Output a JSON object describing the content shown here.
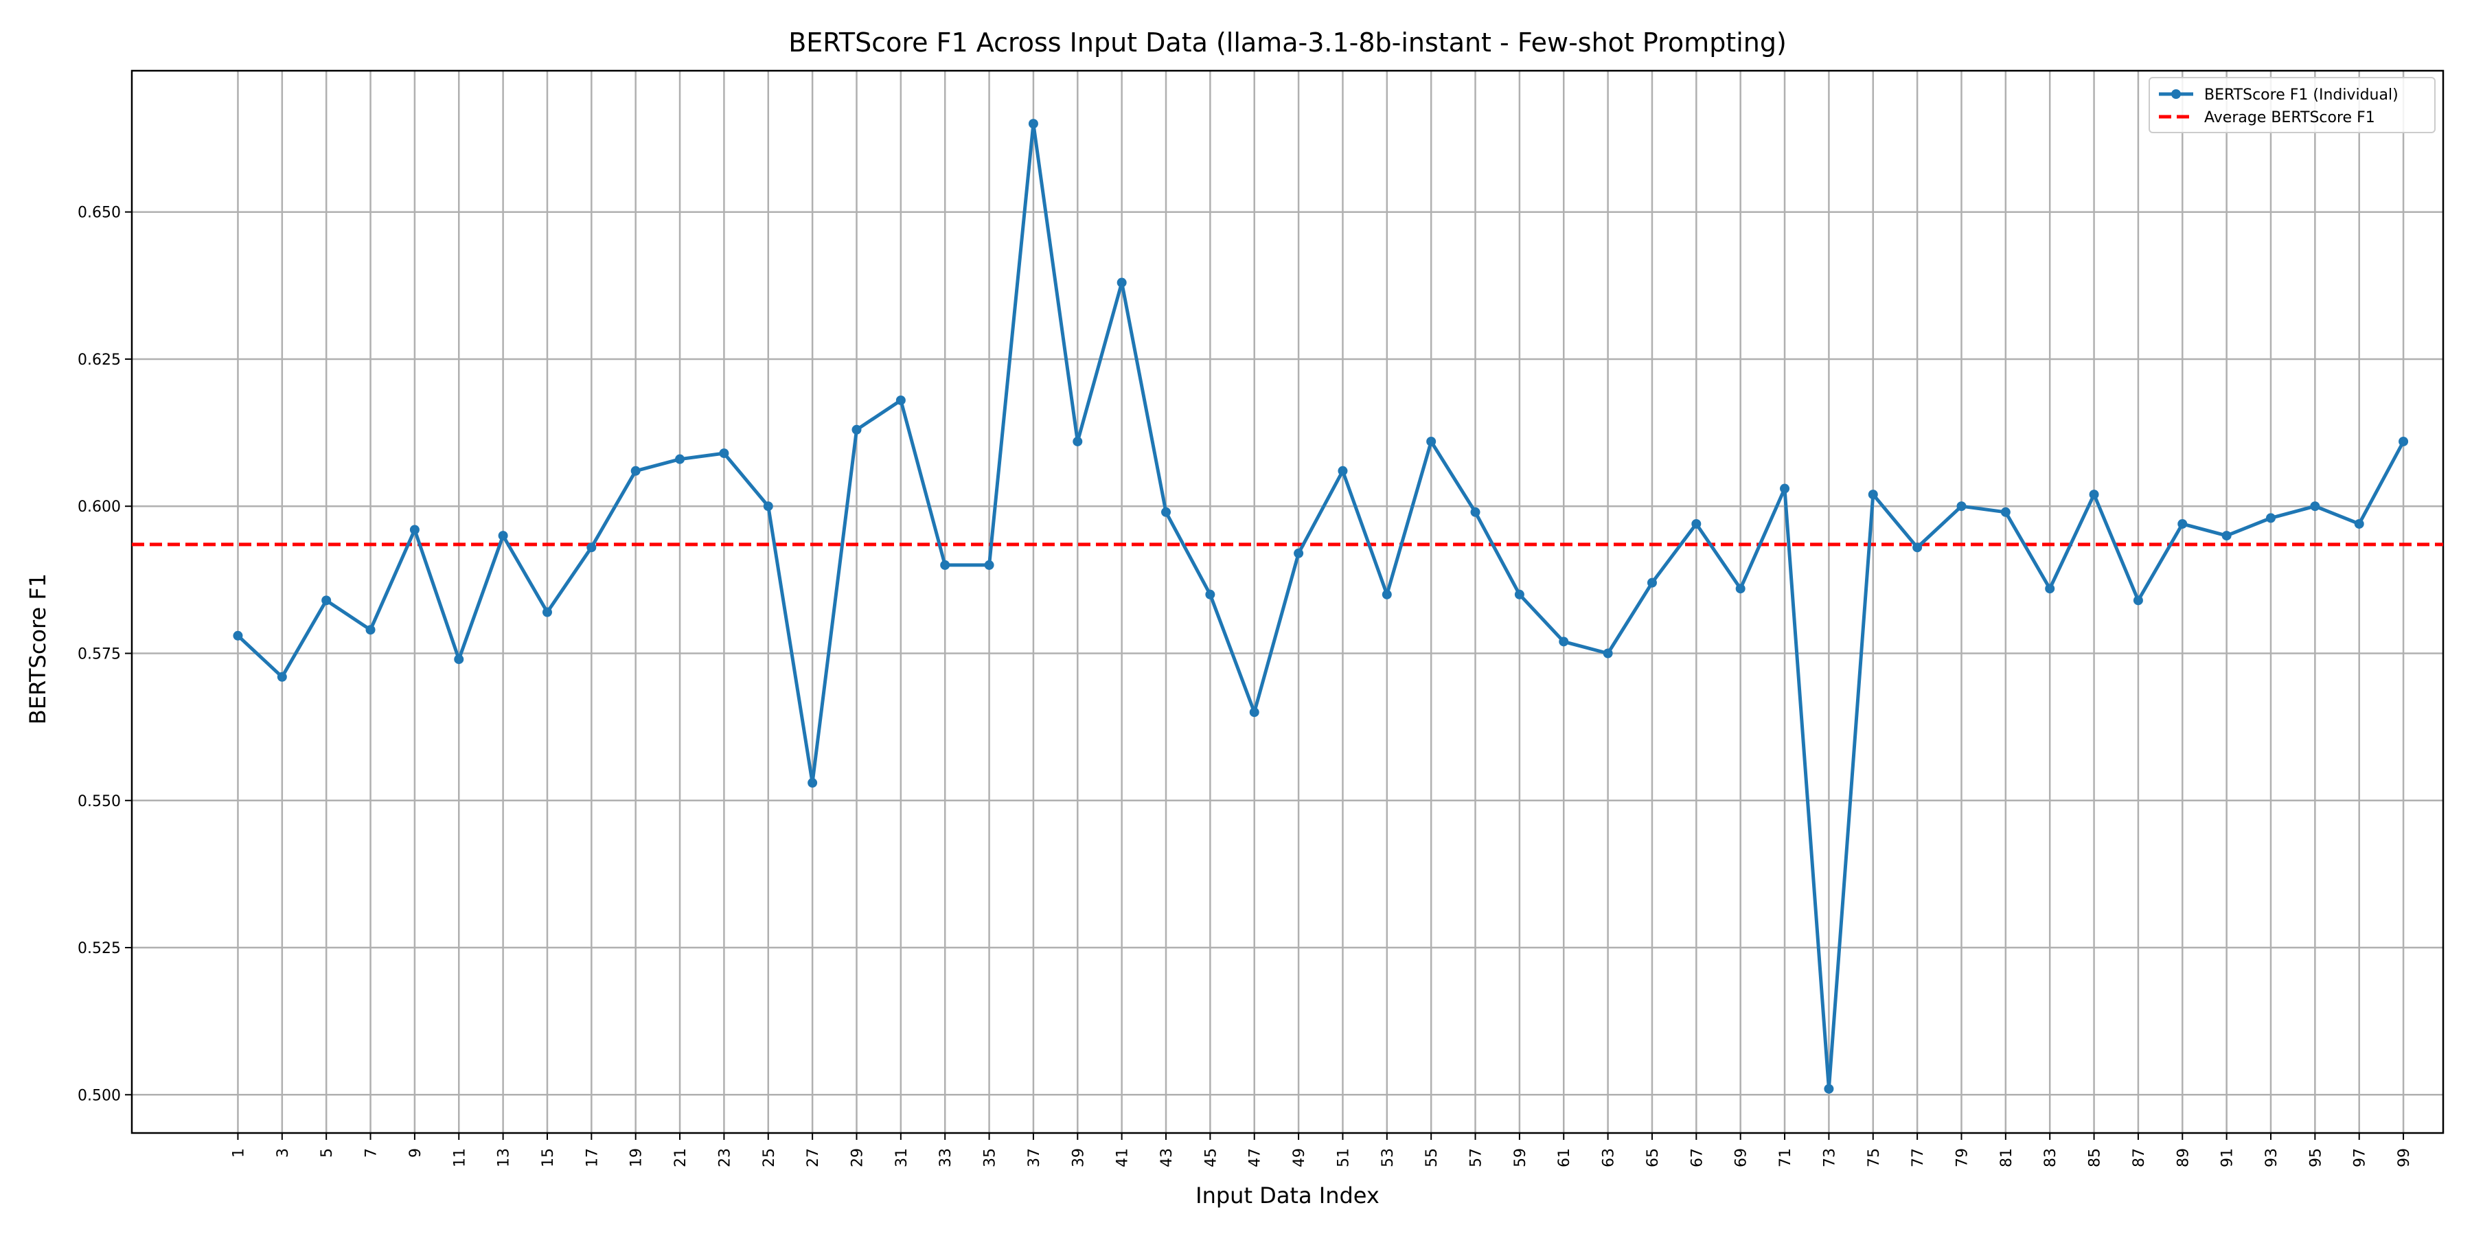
{
  "chart_data": {
    "type": "line",
    "title": "BERTScore F1 Across Input Data (llama-3.1-8b-instant - Few-shot Prompting)",
    "xlabel": "Input Data Index",
    "ylabel": "BERTScore F1",
    "x": [
      1,
      3,
      5,
      7,
      9,
      11,
      13,
      15,
      17,
      19,
      21,
      23,
      25,
      27,
      29,
      31,
      33,
      35,
      37,
      39,
      41,
      43,
      45,
      47,
      49,
      51,
      53,
      55,
      57,
      59,
      61,
      63,
      65,
      67,
      69,
      71,
      73,
      75,
      77,
      79,
      81,
      83,
      85,
      87,
      89,
      91,
      93,
      95,
      97,
      99
    ],
    "xlim": [
      -3.8,
      100.8
    ],
    "ylim": [
      0.4935,
      0.674
    ],
    "yticks": [
      0.5,
      0.525,
      0.55,
      0.575,
      0.6,
      0.625,
      0.65
    ],
    "ytick_labels": [
      "0.500",
      "0.525",
      "0.550",
      "0.575",
      "0.600",
      "0.625",
      "0.650"
    ],
    "grid": true,
    "legend_position": "top-right",
    "series": [
      {
        "name": "BERTScore F1 (Individual)",
        "color": "#1f77b4",
        "style": "solid-with-markers",
        "values": [
          0.578,
          0.571,
          0.584,
          0.579,
          0.596,
          0.574,
          0.595,
          0.582,
          0.593,
          0.606,
          0.608,
          0.609,
          0.6,
          0.553,
          0.613,
          0.618,
          0.59,
          0.59,
          0.665,
          0.611,
          0.638,
          0.599,
          0.585,
          0.565,
          0.592,
          0.606,
          0.585,
          0.611,
          0.599,
          0.585,
          0.577,
          0.575,
          0.587,
          0.597,
          0.586,
          0.603,
          0.501,
          0.602,
          0.593,
          0.6,
          0.599,
          0.586,
          0.602,
          0.584,
          0.597,
          0.595,
          0.598,
          0.6,
          0.597,
          0.611
        ]
      },
      {
        "name": "Average BERTScore F1",
        "color": "#ff0000",
        "style": "dashed",
        "value": 0.5935
      }
    ]
  }
}
